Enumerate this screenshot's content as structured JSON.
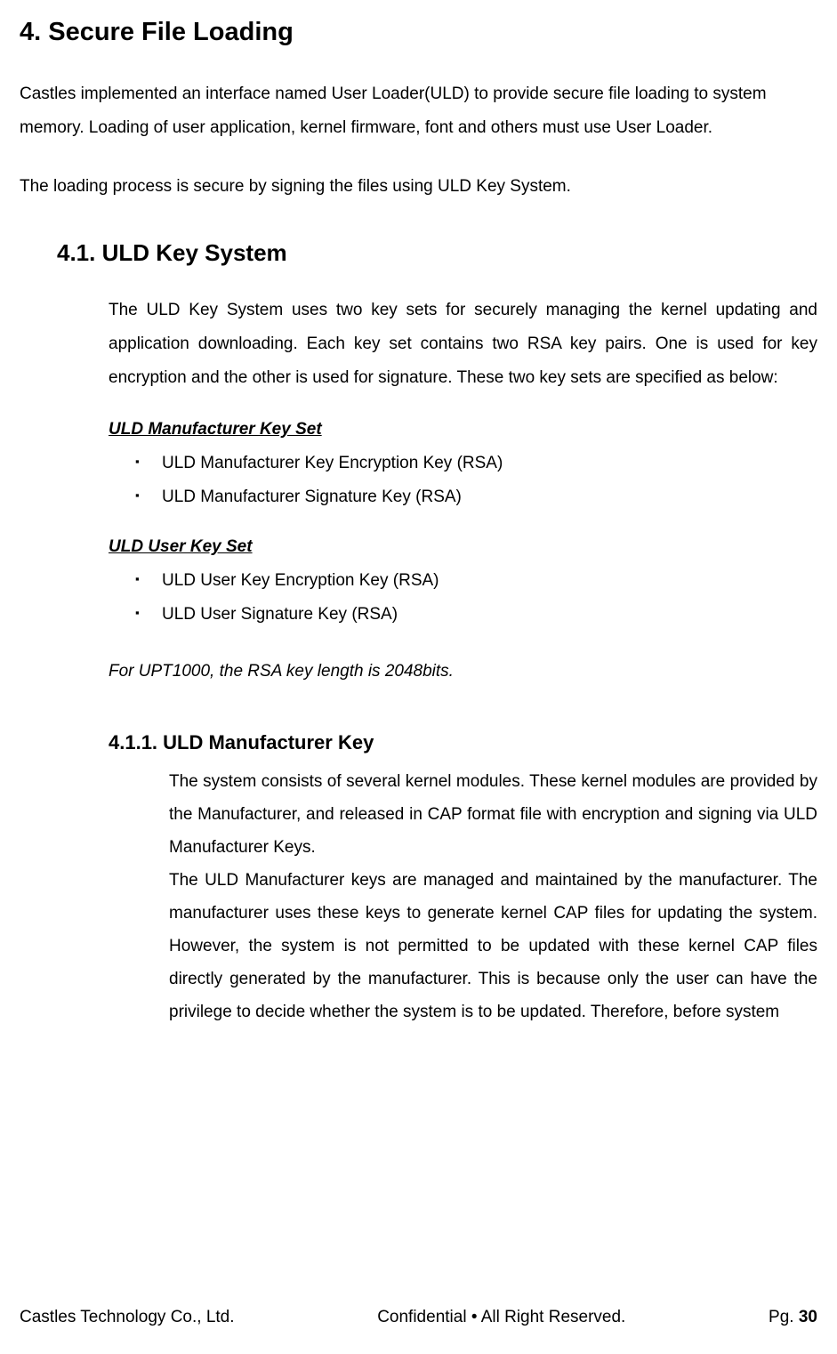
{
  "heading_main": "4. Secure File Loading",
  "para_intro": "Castles implemented an interface named User Loader(ULD) to provide secure file loading to system memory. Loading of user application, kernel firmware, font and others must use User Loader.",
  "para_secure": "The loading process is secure by signing the files using ULD Key System.",
  "section_4_1": {
    "heading": "4.1.  ULD Key System",
    "para": "The ULD Key System uses two key sets for securely managing the kernel updating and application downloading. Each key set contains two RSA key pairs. One is used for key encryption and the other is used for signature. These two key sets are specified as below:",
    "mfr_keyset": {
      "title": "ULD Manufacturer Key Set",
      "items": [
        "ULD Manufacturer Key Encryption Key (RSA)",
        "ULD Manufacturer Signature Key (RSA)"
      ]
    },
    "user_keyset": {
      "title": "ULD User Key Set",
      "items": [
        "ULD User Key Encryption Key (RSA)",
        "ULD User Signature Key (RSA)"
      ]
    },
    "note": "For UPT1000, the RSA key length is 2048bits."
  },
  "section_4_1_1": {
    "heading": "4.1.1.   ULD Manufacturer Key",
    "para1": "The system consists of several kernel modules. These kernel modules are provided by the Manufacturer, and released in CAP format file with encryption and signing via ULD Manufacturer Keys.",
    "para2": "The ULD Manufacturer keys are managed and maintained by the manufacturer. The manufacturer uses these keys to generate kernel CAP files for updating the system. However, the system is not permitted to be updated with these kernel CAP files directly generated by the manufacturer. This is because only the user can have the privilege to decide whether the system is to be updated. Therefore, before system"
  },
  "footer": {
    "left": "Castles Technology Co., Ltd.",
    "center": "Confidential • All Right Reserved.",
    "right_label": "Pg. ",
    "page_number": "30"
  },
  "colors": {
    "text": "#000000",
    "background": "#ffffff"
  },
  "typography": {
    "body_fontsize_pt": 14,
    "h1_fontsize_pt": 22,
    "h2_fontsize_pt": 19,
    "h3_fontsize_pt": 16,
    "font_family": "Arial",
    "line_height": 2.0
  }
}
